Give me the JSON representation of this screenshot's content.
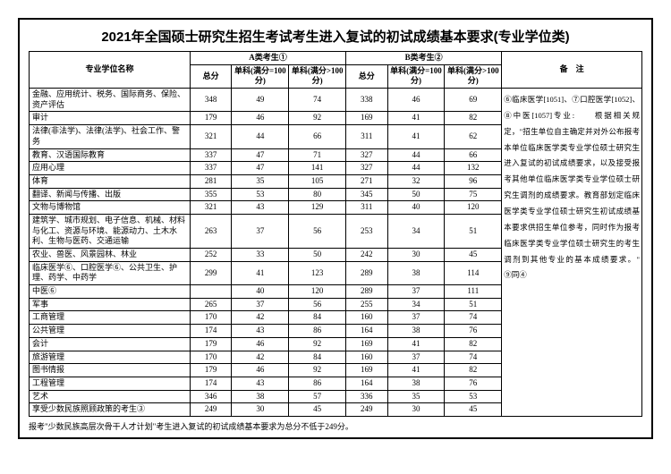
{
  "title": "2021年全国硕士研究生招生考试考生进入复试的初试成绩基本要求(专业学位类)",
  "headers": {
    "major": "专业学位名称",
    "groupA": "A类考生①",
    "groupB": "B类考生②",
    "remark": "备　注",
    "total": "总分",
    "sub100": "单科(满分=100分)",
    "sub100plus": "单科(满分>100分)"
  },
  "rows": [
    {
      "major": "金融、应用统计、税务、国际商务、保险、资产评估",
      "a": [
        348,
        49,
        74
      ],
      "b": [
        338,
        46,
        69
      ]
    },
    {
      "major": "审计",
      "a": [
        179,
        46,
        92
      ],
      "b": [
        169,
        41,
        82
      ]
    },
    {
      "major": "法律(非法学)、法律(法学)、社会工作、警务",
      "a": [
        321,
        44,
        66
      ],
      "b": [
        311,
        41,
        62
      ]
    },
    {
      "major": "教育、汉语国际教育",
      "a": [
        337,
        47,
        71
      ],
      "b": [
        327,
        44,
        66
      ]
    },
    {
      "major": "应用心理",
      "a": [
        337,
        47,
        141
      ],
      "b": [
        327,
        44,
        132
      ]
    },
    {
      "major": "体育",
      "a": [
        281,
        35,
        105
      ],
      "b": [
        271,
        32,
        96
      ]
    },
    {
      "major": "翻译、新闻与传播、出版",
      "a": [
        355,
        53,
        80
      ],
      "b": [
        345,
        50,
        75
      ]
    },
    {
      "major": "文物与博物馆",
      "a": [
        321,
        43,
        129
      ],
      "b": [
        311,
        40,
        120
      ]
    },
    {
      "major": "建筑学、城市规划、电子信息、机械、材料与化工、资源与环境、能源动力、土木水利、生物与医药、交通运输",
      "a": [
        263,
        37,
        56
      ],
      "b": [
        253,
        34,
        51
      ]
    },
    {
      "major": "农业、兽医、风景园林、林业",
      "a": [
        252,
        33,
        50
      ],
      "b": [
        242,
        30,
        45
      ]
    },
    {
      "major": "临床医学⑥、口腔医学⑥、公共卫生、护理、药学、中药学",
      "a": [
        299,
        41,
        123
      ],
      "b": [
        289,
        38,
        114
      ]
    },
    {
      "major": "中医⑥",
      "a": [
        "",
        40,
        120
      ],
      "b": [
        289,
        37,
        111
      ]
    },
    {
      "major": "军事",
      "a": [
        265,
        37,
        56
      ],
      "b": [
        255,
        34,
        51
      ]
    },
    {
      "major": "工商管理",
      "a": [
        170,
        42,
        84
      ],
      "b": [
        160,
        37,
        74
      ]
    },
    {
      "major": "公共管理",
      "a": [
        174,
        43,
        86
      ],
      "b": [
        164,
        38,
        76
      ]
    },
    {
      "major": "会计",
      "a": [
        179,
        46,
        92
      ],
      "b": [
        169,
        41,
        82
      ]
    },
    {
      "major": "旅游管理",
      "a": [
        170,
        42,
        84
      ],
      "b": [
        160,
        37,
        74
      ]
    },
    {
      "major": "图书情报",
      "a": [
        179,
        46,
        92
      ],
      "b": [
        169,
        41,
        82
      ]
    },
    {
      "major": "工程管理",
      "a": [
        174,
        43,
        86
      ],
      "b": [
        164,
        38,
        76
      ]
    },
    {
      "major": "艺术",
      "a": [
        346,
        38,
        57
      ],
      "b": [
        336,
        35,
        53
      ]
    },
    {
      "major": "享受少数民族照顾政策的考生③",
      "a": [
        249,
        30,
        45
      ],
      "b": [
        249,
        30,
        45
      ]
    }
  ],
  "notes": "⑥临床医学[1051]、⑦口腔医学[1052]、⑧中医[1057]专业:　　根据相关规定，\"招生单位自主确定并对外公布报考本单位临床医学类专业学位硕士研究生进入复试的初试成绩要求，以及接受报考其他单位临床医学类专业学位硕士研究生调剂的成绩要求。教育部划定临床医学类专业学位硕士研究生初试成绩基本要求供招生单位参考，同时作为报考临床医学类专业学位硕士研究生的考生调剂到其他专业的基本成绩要求。\"　　⑨同④",
  "footnote": "报考\"少数民族高层次骨干人才计划\"考生进入复试的初试成绩基本要求为总分不低于249分。"
}
